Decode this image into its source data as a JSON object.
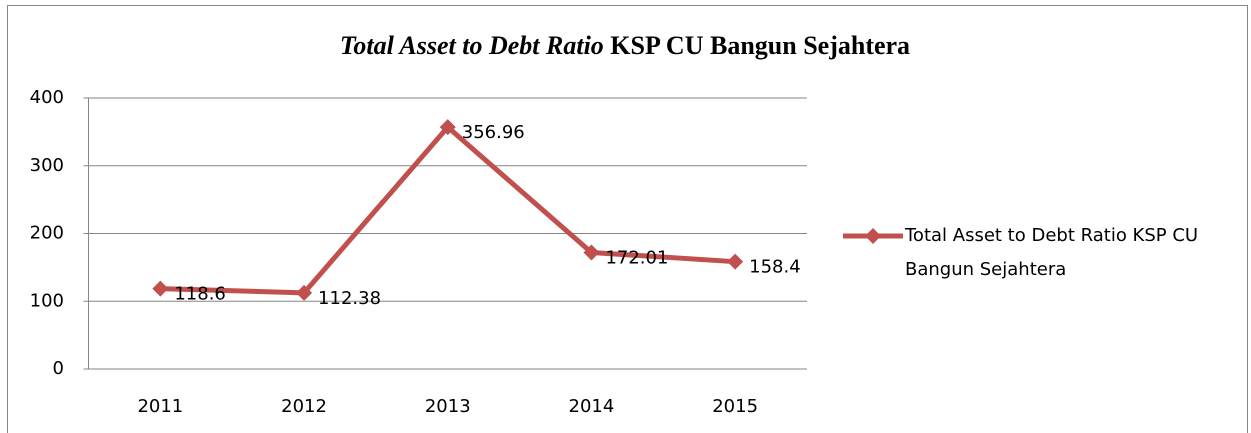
{
  "chart_data": {
    "type": "line",
    "title": [
      "Total Asset to Debt Ratio",
      "KSP CU Bangun Sejahtera"
    ],
    "categories": [
      "2011",
      "2012",
      "2013",
      "2014",
      "2015"
    ],
    "series": [
      {
        "name": "Total Asset to Debt Ratio KSP CU Bangun Sejahtera",
        "color": "#c0504d",
        "values": [
          118.6,
          112.38,
          356.96,
          172.01,
          158.4
        ]
      }
    ],
    "ylim": [
      0,
      400
    ],
    "yticks": [
      0,
      100,
      200,
      300,
      400
    ],
    "grid": true,
    "legend": "right"
  }
}
